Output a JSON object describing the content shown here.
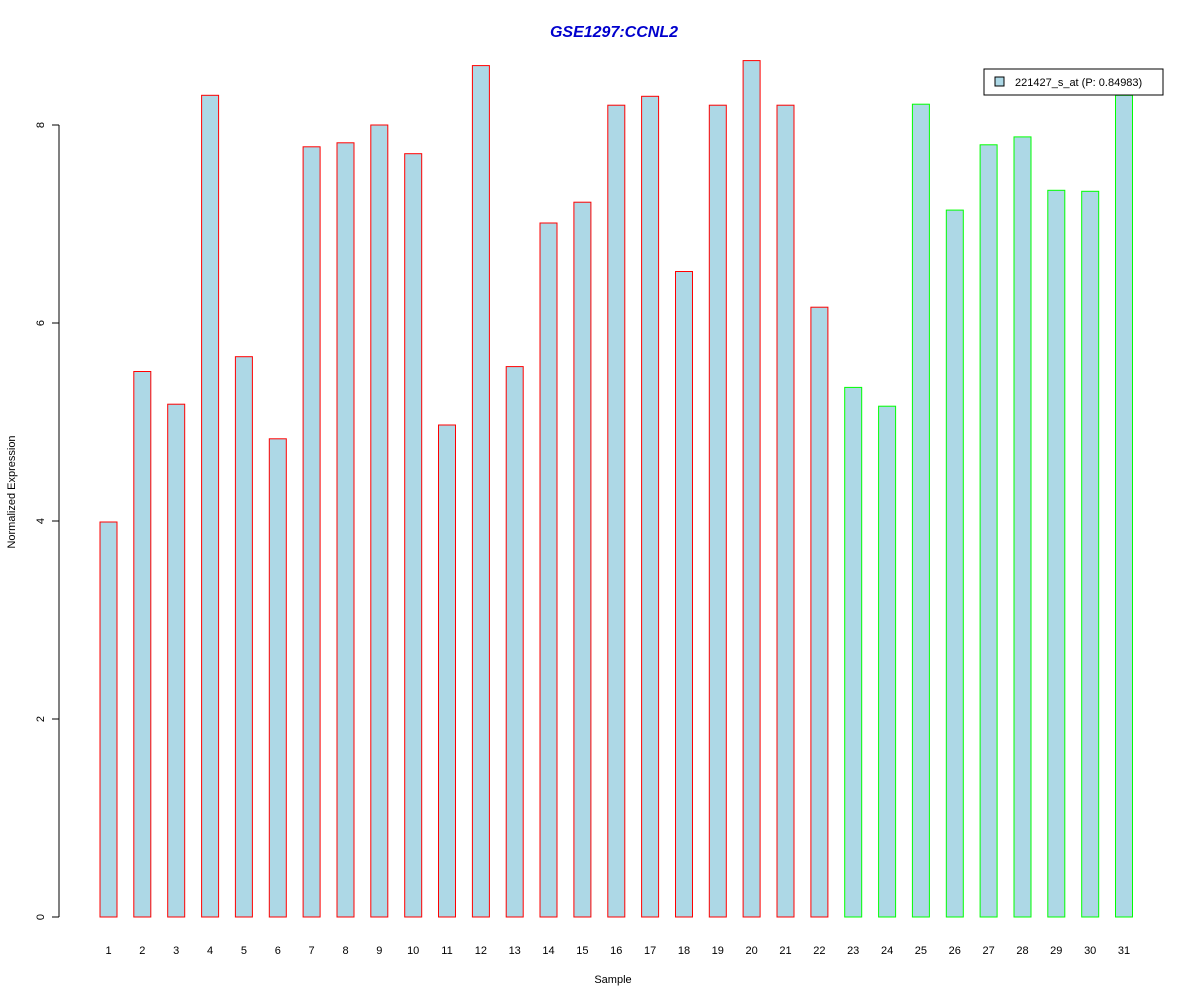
{
  "chart_data": {
    "type": "bar",
    "title": "GSE1297:CCNL2",
    "xlabel": "Sample",
    "ylabel": "Normalized Expression",
    "ylim": [
      0,
      8.6
    ],
    "yticks": [
      0,
      2,
      4,
      6,
      8
    ],
    "categories": [
      "1",
      "2",
      "3",
      "4",
      "5",
      "6",
      "7",
      "8",
      "9",
      "10",
      "11",
      "12",
      "13",
      "14",
      "15",
      "16",
      "17",
      "18",
      "19",
      "20",
      "21",
      "22",
      "23",
      "24",
      "25",
      "26",
      "27",
      "28",
      "29",
      "30",
      "31"
    ],
    "series": [
      {
        "name": "221427_s_at (P: 0.84983)",
        "values": [
          3.99,
          5.51,
          5.18,
          8.3,
          5.66,
          4.83,
          7.78,
          7.82,
          8.0,
          7.71,
          4.97,
          8.6,
          5.56,
          7.01,
          7.22,
          8.2,
          8.29,
          6.52,
          8.2,
          8.65,
          8.2,
          6.16,
          5.35,
          5.16,
          8.21,
          7.14,
          7.8,
          7.88,
          7.34,
          7.33,
          8.3
        ]
      }
    ],
    "group": [
      "red",
      "red",
      "red",
      "red",
      "red",
      "red",
      "red",
      "red",
      "red",
      "red",
      "red",
      "red",
      "red",
      "red",
      "red",
      "red",
      "red",
      "red",
      "red",
      "red",
      "red",
      "red",
      "green",
      "green",
      "green",
      "green",
      "green",
      "green",
      "green",
      "green",
      "green"
    ],
    "colors": {
      "fill": "#add8e6",
      "group_red": "#ff0000",
      "group_green": "#00ff00",
      "title": "#0000cd"
    },
    "legend_position": "top-right",
    "grid": false
  }
}
